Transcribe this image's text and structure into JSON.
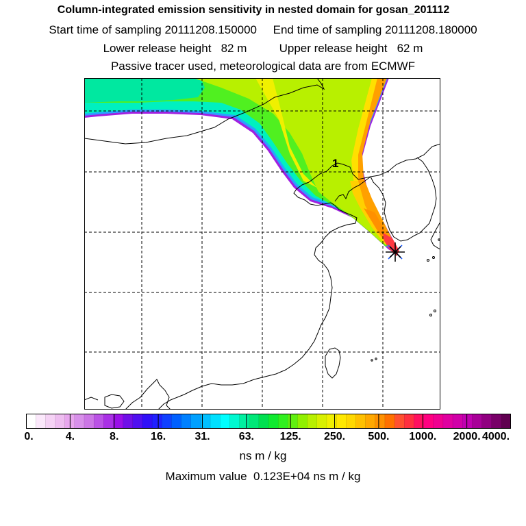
{
  "header": {
    "title": "Column-integrated emission sensitivity in nested domain for gosan_201112",
    "sampling_line": "Start time of sampling 20111208.150000     End time of sampling 20111208.180000",
    "release_line": "Lower release height   82 m          Upper release height   62 m",
    "tracer_line": "Passive tracer used, meteorological data are from ECMWF"
  },
  "map": {
    "receptor_marker": "*",
    "point_label": "1",
    "background_color": "#ffffff",
    "coastline_color": "#000000",
    "gridline_color": "#000000"
  },
  "colorbar": {
    "colors": [
      "#ffffff",
      "#fbe8fb",
      "#f5d2f5",
      "#eebdf0",
      "#e8a6ee",
      "#d890ea",
      "#cc76e6",
      "#bb52e6",
      "#aa30e6",
      "#9a10e8",
      "#7010e8",
      "#5010f0",
      "#3010f8",
      "#2020ff",
      "#1040ff",
      "#0060ff",
      "#0080ff",
      "#00a0ff",
      "#00c0ff",
      "#00e0ff",
      "#00ffff",
      "#00f8d0",
      "#00f0a0",
      "#00e878",
      "#00e050",
      "#10ea30",
      "#30f020",
      "#60f010",
      "#90f000",
      "#b8f000",
      "#d8f000",
      "#f0f000",
      "#ffe800",
      "#ffd800",
      "#ffc000",
      "#ffa800",
      "#ff9000",
      "#ff7000",
      "#ff5030",
      "#ff3040",
      "#ff1060",
      "#ff0080",
      "#f00090",
      "#e000a0",
      "#d000a8",
      "#c000b0",
      "#a80098",
      "#900080",
      "#780068",
      "#600050"
    ],
    "tick_labels": [
      "0.",
      "4.",
      "8.",
      "16.",
      "31.",
      "63.",
      "125.",
      "250.",
      "500.",
      "1000.",
      "2000.",
      "4000."
    ],
    "units": "ns m / kg"
  },
  "footer": {
    "max_value_line": "Maximum value  0.123E+04 ns m / kg"
  }
}
